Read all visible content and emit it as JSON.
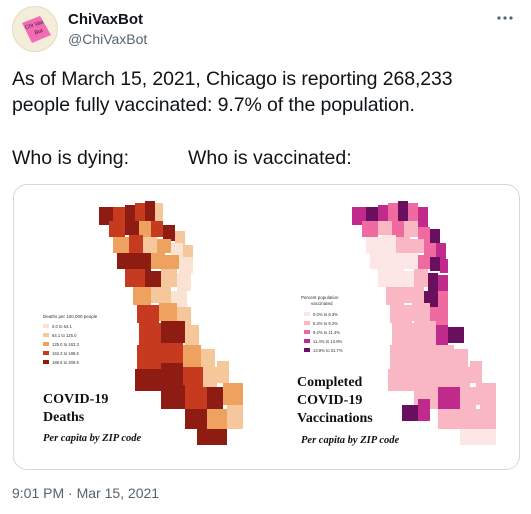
{
  "author": {
    "display_name": "ChiVaxBot",
    "handle": "@ChiVaxBot",
    "avatar_text": "Chi Vax Bot"
  },
  "more_icon": "ellipsis-icon",
  "tweet": {
    "line1": "As of March 15, 2021, Chicago is reporting 268,233",
    "line2": "people fully vaccinated: 9.7% of the population.",
    "subhead_left": "Who is dying:",
    "subhead_right": "Who is vaccinated:"
  },
  "deaths_map": {
    "legend_title": "Deaths per 100,000 people",
    "legend": [
      {
        "label": "0.0 to 64.1",
        "color": "#fbe3d4"
      },
      {
        "label": "64.1 to 125.0",
        "color": "#f5c79b"
      },
      {
        "label": "125.0 to 163.3",
        "color": "#eda35f"
      },
      {
        "label": "163.3 to 188.6",
        "color": "#c63a1f"
      },
      {
        "label": "188.6 to 308.5",
        "color": "#8e1c13"
      }
    ],
    "title_line1": "COVID-19",
    "title_line2": "Deaths",
    "caption": "Per capita by ZIP code"
  },
  "vax_map": {
    "legend_title_line1": "Percent population",
    "legend_title_line2": "vaccinated",
    "legend": [
      {
        "label": "0.0% to 6.3%",
        "color": "#fde6e6"
      },
      {
        "label": "6.3% to 9.2%",
        "color": "#f9b6c3"
      },
      {
        "label": "9.2% to 11.4%",
        "color": "#ef6aa0"
      },
      {
        "label": "11.4% to 13.8%",
        "color": "#c02a8a"
      },
      {
        "label": "13.8% to 31.7%",
        "color": "#6a0f5e"
      }
    ],
    "title_line1": "Completed",
    "title_line2": "COVID-19",
    "title_line3": "Vaccinations",
    "caption": "Per capita by ZIP code"
  },
  "timestamp": "9:01 PM · Mar 15, 2021"
}
